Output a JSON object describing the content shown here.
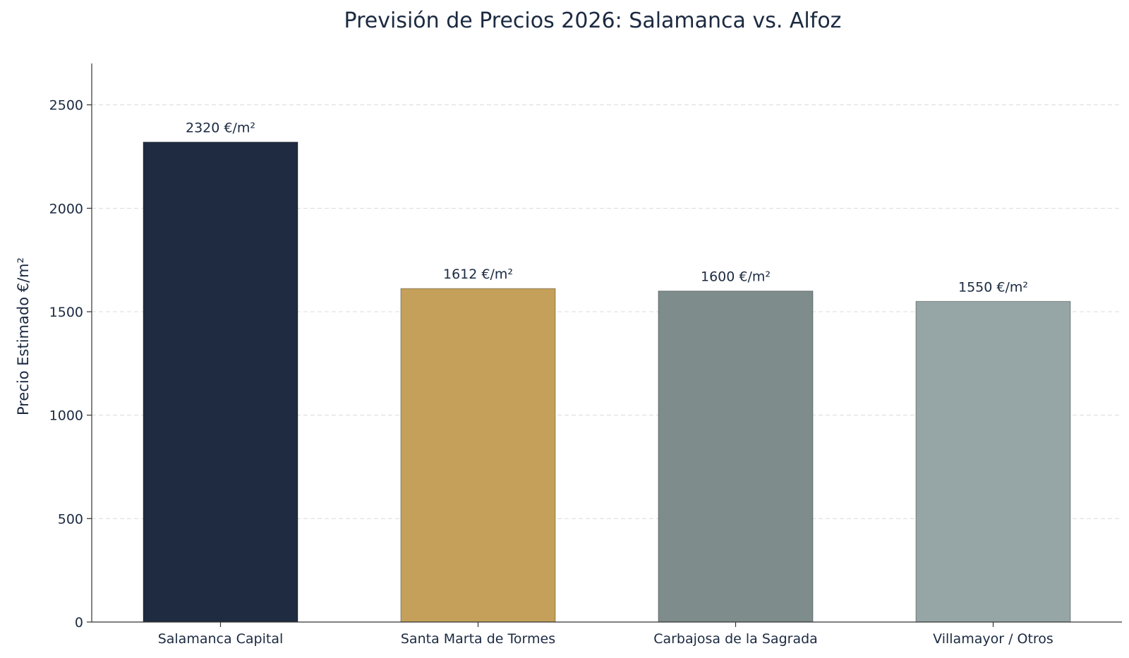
{
  "chart_data": {
    "type": "bar",
    "title": "Previsión de Precios 2026: Salamanca vs. Alfoz",
    "xlabel": "",
    "ylabel": "Precio Estimado €/m²",
    "categories": [
      "Salamanca Capital",
      "Santa Marta de Tormes",
      "Carbajosa de la Sagrada",
      "Villamayor / Otros"
    ],
    "values": [
      2320,
      1612,
      1600,
      1550
    ],
    "data_labels": [
      "2320 €/m²",
      "1612 €/m²",
      "1600 €/m²",
      "1550 €/m²"
    ],
    "colors": [
      "#1e2b40",
      "#c4a05a",
      "#7f8c8c",
      "#96a5a5"
    ],
    "ylim": [
      0,
      2700
    ],
    "yticks": [
      0,
      500,
      1000,
      1500,
      2000,
      2500
    ],
    "grid": true,
    "legend": "none"
  }
}
